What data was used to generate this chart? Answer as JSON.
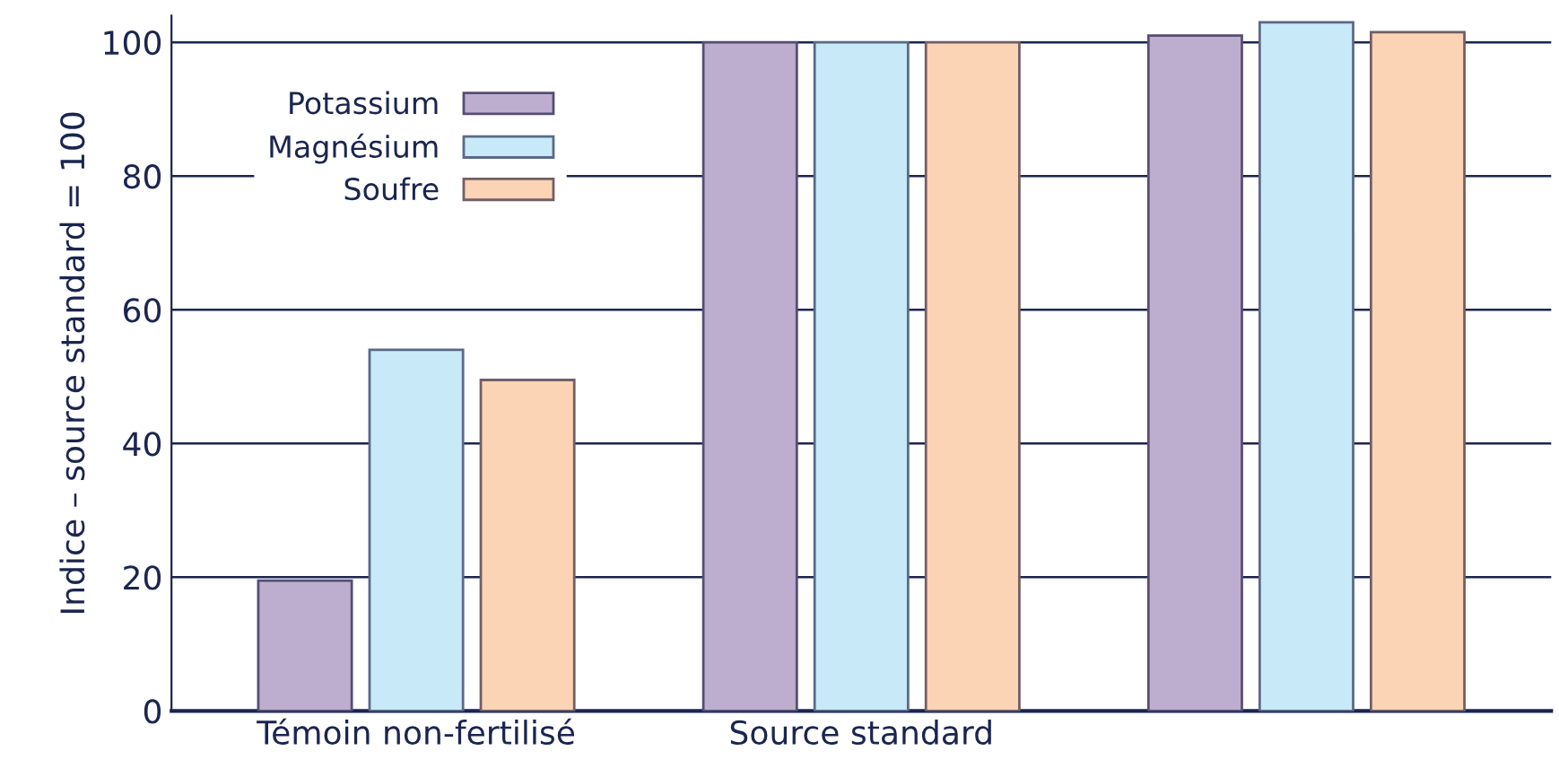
{
  "chart_data": {
    "type": "bar",
    "ylabel": "Indice – source standard = 100",
    "categories": [
      "Témoin non-fertilisé",
      "Source standard",
      null
    ],
    "series": [
      {
        "name": "Potassium",
        "color": "#bdaed0",
        "values": [
          19.5,
          100,
          101
        ]
      },
      {
        "name": "Magnésium",
        "color": "#c8e9f8",
        "values": [
          54,
          100,
          103
        ]
      },
      {
        "name": "Soufre",
        "color": "#fbd3b5",
        "values": [
          49.5,
          100,
          101.5
        ]
      }
    ],
    "ylim": [
      0,
      104
    ],
    "yticks": [
      0,
      20,
      40,
      60,
      80,
      100
    ],
    "grid": "y",
    "legend": "top left"
  }
}
